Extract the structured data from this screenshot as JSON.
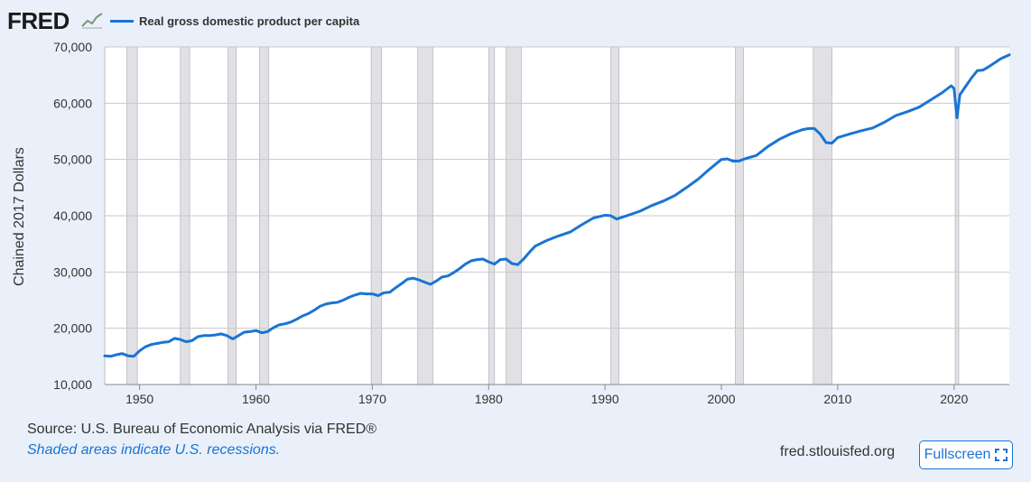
{
  "logo_text": "FRED",
  "legend_label": "Real gross domestic product per capita",
  "source_text": "Source: U.S. Bureau of Economic Analysis via FRED®",
  "note_text": "Shaded areas indicate U.S. recessions.",
  "site_url": "fred.stlouisfed.org",
  "fullscreen_label": "Fullscreen",
  "colors": {
    "line": "#1a74d4",
    "recession": "#e1e1e5",
    "background": "#e9f0f9",
    "plot": "#ffffff"
  },
  "chart_data": {
    "type": "line",
    "title": "",
    "ylabel": "Chained 2017 Dollars",
    "xlabel": "",
    "xlim": [
      1947.0,
      2024.75
    ],
    "ylim": [
      10000,
      70000
    ],
    "yticks": [
      10000,
      20000,
      30000,
      40000,
      50000,
      60000,
      70000
    ],
    "ytick_labels": [
      "10,000",
      "20,000",
      "30,000",
      "40,000",
      "50,000",
      "60,000",
      "70,000"
    ],
    "xticks": [
      1950,
      1960,
      1970,
      1980,
      1990,
      2000,
      2010,
      2020
    ],
    "xtick_labels": [
      "1950",
      "1960",
      "1970",
      "1980",
      "1990",
      "2000",
      "2010",
      "2020"
    ],
    "grid": true,
    "legend_position": "top-left",
    "recessions": [
      [
        1948.9,
        1949.8
      ],
      [
        1953.5,
        1954.3
      ],
      [
        1957.6,
        1958.3
      ],
      [
        1960.3,
        1961.1
      ],
      [
        1969.9,
        1970.8
      ],
      [
        1973.9,
        1975.2
      ],
      [
        1980.0,
        1980.5
      ],
      [
        1981.5,
        1982.8
      ],
      [
        1990.5,
        1991.2
      ],
      [
        2001.2,
        2001.9
      ],
      [
        2007.9,
        2009.5
      ],
      [
        2020.1,
        2020.4
      ]
    ],
    "series": [
      {
        "name": "Real gross domestic product per capita",
        "x": [
          1947.0,
          1947.5,
          1948.0,
          1948.5,
          1949.0,
          1949.5,
          1950.0,
          1950.5,
          1951.0,
          1951.5,
          1952.0,
          1952.5,
          1953.0,
          1953.5,
          1954.0,
          1954.5,
          1955.0,
          1955.5,
          1956.0,
          1956.5,
          1957.0,
          1957.5,
          1958.0,
          1958.5,
          1959.0,
          1959.5,
          1960.0,
          1960.5,
          1961.0,
          1961.5,
          1962.0,
          1962.5,
          1963.0,
          1963.5,
          1964.0,
          1964.5,
          1965.0,
          1965.5,
          1966.0,
          1966.5,
          1967.0,
          1967.5,
          1968.0,
          1968.5,
          1969.0,
          1969.5,
          1970.0,
          1970.5,
          1971.0,
          1971.5,
          1972.0,
          1972.5,
          1973.0,
          1973.5,
          1974.0,
          1974.5,
          1975.0,
          1975.5,
          1976.0,
          1976.5,
          1977.0,
          1977.5,
          1978.0,
          1978.5,
          1979.0,
          1979.5,
          1980.0,
          1980.5,
          1981.0,
          1981.5,
          1982.0,
          1982.5,
          1983.0,
          1983.5,
          1984.0,
          1985.0,
          1986.0,
          1987.0,
          1988.0,
          1989.0,
          1990.0,
          1990.5,
          1991.0,
          1992.0,
          1993.0,
          1994.0,
          1995.0,
          1996.0,
          1997.0,
          1998.0,
          1999.0,
          2000.0,
          2000.5,
          2001.0,
          2001.5,
          2002.0,
          2003.0,
          2004.0,
          2005.0,
          2006.0,
          2007.0,
          2007.5,
          2008.0,
          2008.5,
          2009.0,
          2009.5,
          2010.0,
          2011.0,
          2012.0,
          2013.0,
          2014.0,
          2015.0,
          2016.0,
          2017.0,
          2018.0,
          2019.0,
          2019.75,
          2020.0,
          2020.25,
          2020.5,
          2021.0,
          2021.5,
          2022.0,
          2022.5,
          2023.0,
          2023.5,
          2024.0,
          2024.75
        ],
        "y": [
          15100,
          15000,
          15300,
          15500,
          15100,
          15000,
          16000,
          16700,
          17100,
          17300,
          17500,
          17600,
          18200,
          18000,
          17600,
          17800,
          18500,
          18700,
          18700,
          18800,
          19000,
          18700,
          18100,
          18700,
          19300,
          19400,
          19600,
          19200,
          19400,
          20100,
          20600,
          20800,
          21100,
          21600,
          22200,
          22600,
          23200,
          23900,
          24300,
          24500,
          24600,
          25000,
          25500,
          25900,
          26200,
          26100,
          26100,
          25800,
          26300,
          26400,
          27200,
          27900,
          28700,
          28900,
          28600,
          28200,
          27800,
          28400,
          29100,
          29300,
          29900,
          30600,
          31400,
          32000,
          32200,
          32300,
          31800,
          31400,
          32200,
          32300,
          31500,
          31300,
          32300,
          33500,
          34600,
          35600,
          36400,
          37100,
          38400,
          39600,
          40100,
          40000,
          39400,
          40100,
          40800,
          41800,
          42600,
          43600,
          45000,
          46500,
          48300,
          50000,
          50100,
          49700,
          49700,
          50100,
          50700,
          52300,
          53600,
          54600,
          55300,
          55500,
          55500,
          54500,
          53000,
          52900,
          53900,
          54500,
          55100,
          55600,
          56600,
          57800,
          58500,
          59300,
          60600,
          61900,
          63100,
          62600,
          57400,
          61500,
          63000,
          64500,
          65800,
          65900,
          66500,
          67200,
          67900,
          68600
        ]
      }
    ]
  }
}
